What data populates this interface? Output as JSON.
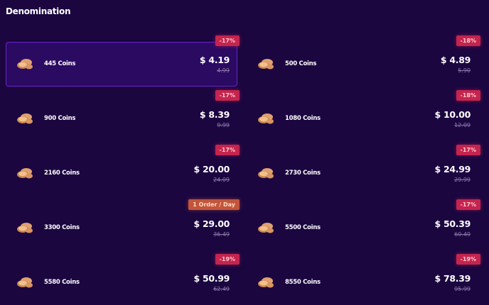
{
  "title": "Denomination",
  "items": [
    {
      "name": "445 Coins",
      "price": "$ 4.19",
      "old": "4.99",
      "badge": "-17%",
      "badge_type": "discount",
      "selected": true
    },
    {
      "name": "500 Coins",
      "price": "$ 4.89",
      "old": "5.90",
      "badge": "-18%",
      "badge_type": "discount"
    },
    {
      "name": "900 Coins",
      "price": "$ 8.39",
      "old": "9.99",
      "badge": "-17%",
      "badge_type": "discount"
    },
    {
      "name": "1080 Coins",
      "price": "$ 10.00",
      "old": "12.09",
      "badge": "-18%",
      "badge_type": "discount"
    },
    {
      "name": "2160 Coins",
      "price": "$ 20.00",
      "old": "24.09",
      "badge": "-17%",
      "badge_type": "discount"
    },
    {
      "name": "2730 Coins",
      "price": "$ 24.99",
      "old": "29.99",
      "badge": "-17%",
      "badge_type": "discount"
    },
    {
      "name": "3300 Coins",
      "price": "$ 29.00",
      "old": "36.49",
      "badge": "1 Order / Day",
      "badge_type": "limit"
    },
    {
      "name": "5500 Coins",
      "price": "$ 50.39",
      "old": "60.49",
      "badge": "-17%",
      "badge_type": "discount"
    },
    {
      "name": "5580 Coins",
      "price": "$ 50.99",
      "old": "62.49",
      "badge": "-19%",
      "badge_type": "discount"
    },
    {
      "name": "8550 Coins",
      "price": "$ 78.39",
      "old": "95.99",
      "badge": "-19%",
      "badge_type": "discount"
    }
  ],
  "colors": {
    "background": "#1b0640",
    "selected": "#2b0a62",
    "discount": "#c4244e",
    "limit": "#c2553a"
  }
}
